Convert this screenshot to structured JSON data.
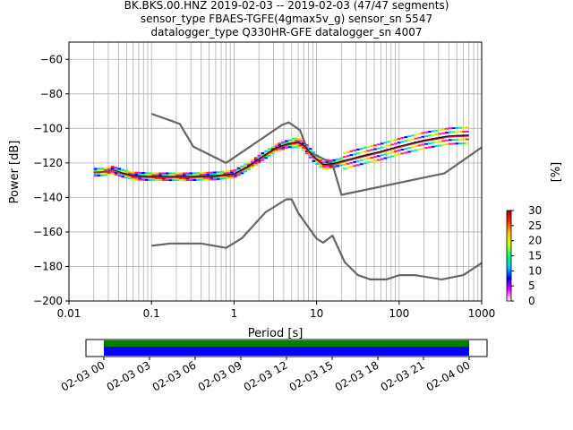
{
  "chart_data": {
    "type": "line",
    "title_lines": [
      "BK.BKS.00.HNZ   2019-02-03 -- 2019-02-03  (47/47 segments)",
      "sensor_type FBAES-TGFE(4gmax5v_g) sensor_sn 5547",
      "datalogger_type Q330HR-GFE datalogger_sn 4007"
    ],
    "xlabel": "Period [s]",
    "ylabel": "Power [dB]",
    "x_scale": "log",
    "xlim": [
      0.01,
      1000
    ],
    "ylim": [
      -200,
      -50
    ],
    "x_ticks": [
      {
        "value": 0.01,
        "label": "0.01"
      },
      {
        "value": 0.1,
        "label": "0.1"
      },
      {
        "value": 1,
        "label": "1"
      },
      {
        "value": 10,
        "label": "10"
      },
      {
        "value": 100,
        "label": "100"
      },
      {
        "value": 1000,
        "label": "1000"
      }
    ],
    "y_ticks": [
      {
        "value": -60,
        "label": "−60"
      },
      {
        "value": -80,
        "label": "−80"
      },
      {
        "value": -100,
        "label": "−100"
      },
      {
        "value": -120,
        "label": "−120"
      },
      {
        "value": -140,
        "label": "−140"
      },
      {
        "value": -160,
        "label": "−160"
      },
      {
        "value": -180,
        "label": "−180"
      },
      {
        "value": -200,
        "label": "−200"
      }
    ],
    "grid": true,
    "series": [
      {
        "role": "new-high-noise-model",
        "color": "#666666",
        "x": [
          0.1,
          0.22,
          0.32,
          0.8,
          3.8,
          4.6,
          6.3,
          7.9,
          15.4,
          20,
          354.8,
          1000
        ],
        "y": [
          -91.5,
          -97.4,
          -110.5,
          -120,
          -98,
          -96.5,
          -101,
          -113.5,
          -120,
          -138.5,
          -126,
          -111
        ]
      },
      {
        "role": "new-low-noise-model",
        "color": "#666666",
        "x": [
          0.1,
          0.17,
          0.4,
          0.8,
          1.24,
          2.4,
          4.3,
          5,
          6,
          10,
          12,
          15.6,
          21.9,
          31.6,
          45,
          70,
          101,
          154,
          328,
          600,
          1000
        ],
        "y": [
          -168,
          -166.7,
          -166.7,
          -169.2,
          -163.7,
          -148.6,
          -141.1,
          -141.1,
          -149,
          -163.8,
          -166.2,
          -162.1,
          -177.5,
          -185,
          -187.5,
          -187.5,
          -185,
          -185,
          -187.5,
          -185,
          -178
        ]
      },
      {
        "role": "mean",
        "color": "#000000",
        "x": [
          0.02,
          0.03,
          0.033,
          0.045,
          0.06,
          0.1,
          0.3,
          0.6,
          1,
          1.5,
          2.2,
          3.2,
          4.5,
          6,
          7,
          9,
          12,
          16,
          25,
          40,
          60,
          100,
          200,
          400,
          700
        ],
        "y": [
          -125.5,
          -125,
          -124,
          -126,
          -127.5,
          -128,
          -128,
          -127.5,
          -126.5,
          -122,
          -116.5,
          -111.5,
          -109,
          -108,
          -110,
          -116,
          -121,
          -120.5,
          -118,
          -115.5,
          -113.5,
          -110.5,
          -107,
          -104.5,
          -104
        ]
      },
      {
        "role": "mode",
        "color": "#d62728",
        "x": [
          0.02,
          0.03,
          0.033,
          0.045,
          0.06,
          0.1,
          0.3,
          0.6,
          1,
          1.5,
          2.2,
          3.2,
          4.5,
          6,
          7,
          9,
          12,
          16,
          25,
          40,
          60,
          100,
          200,
          400,
          700
        ],
        "y": [
          -125.5,
          -125,
          -124,
          -126.5,
          -128,
          -128.5,
          -128.5,
          -128,
          -127,
          -122.5,
          -117,
          -112,
          -109.5,
          -108.5,
          -110.5,
          -116.5,
          -121.5,
          -121,
          -118.5,
          -116,
          -114,
          -111,
          -107.5,
          -105,
          -104.5
        ]
      }
    ],
    "colorbar": {
      "label": "[%]",
      "range": [
        0,
        30
      ],
      "ticks": [
        "0",
        "5",
        "10",
        "15",
        "20",
        "25",
        "30"
      ]
    },
    "coverage": {
      "x_labels": [
        "02-03 00",
        "02-03 03",
        "02-03 06",
        "02-03 09",
        "02-03 12",
        "02-03 15",
        "02-03 18",
        "02-03 21",
        "02-04 00"
      ],
      "bar_colors": [
        "#008000",
        "#0000ff"
      ]
    }
  }
}
